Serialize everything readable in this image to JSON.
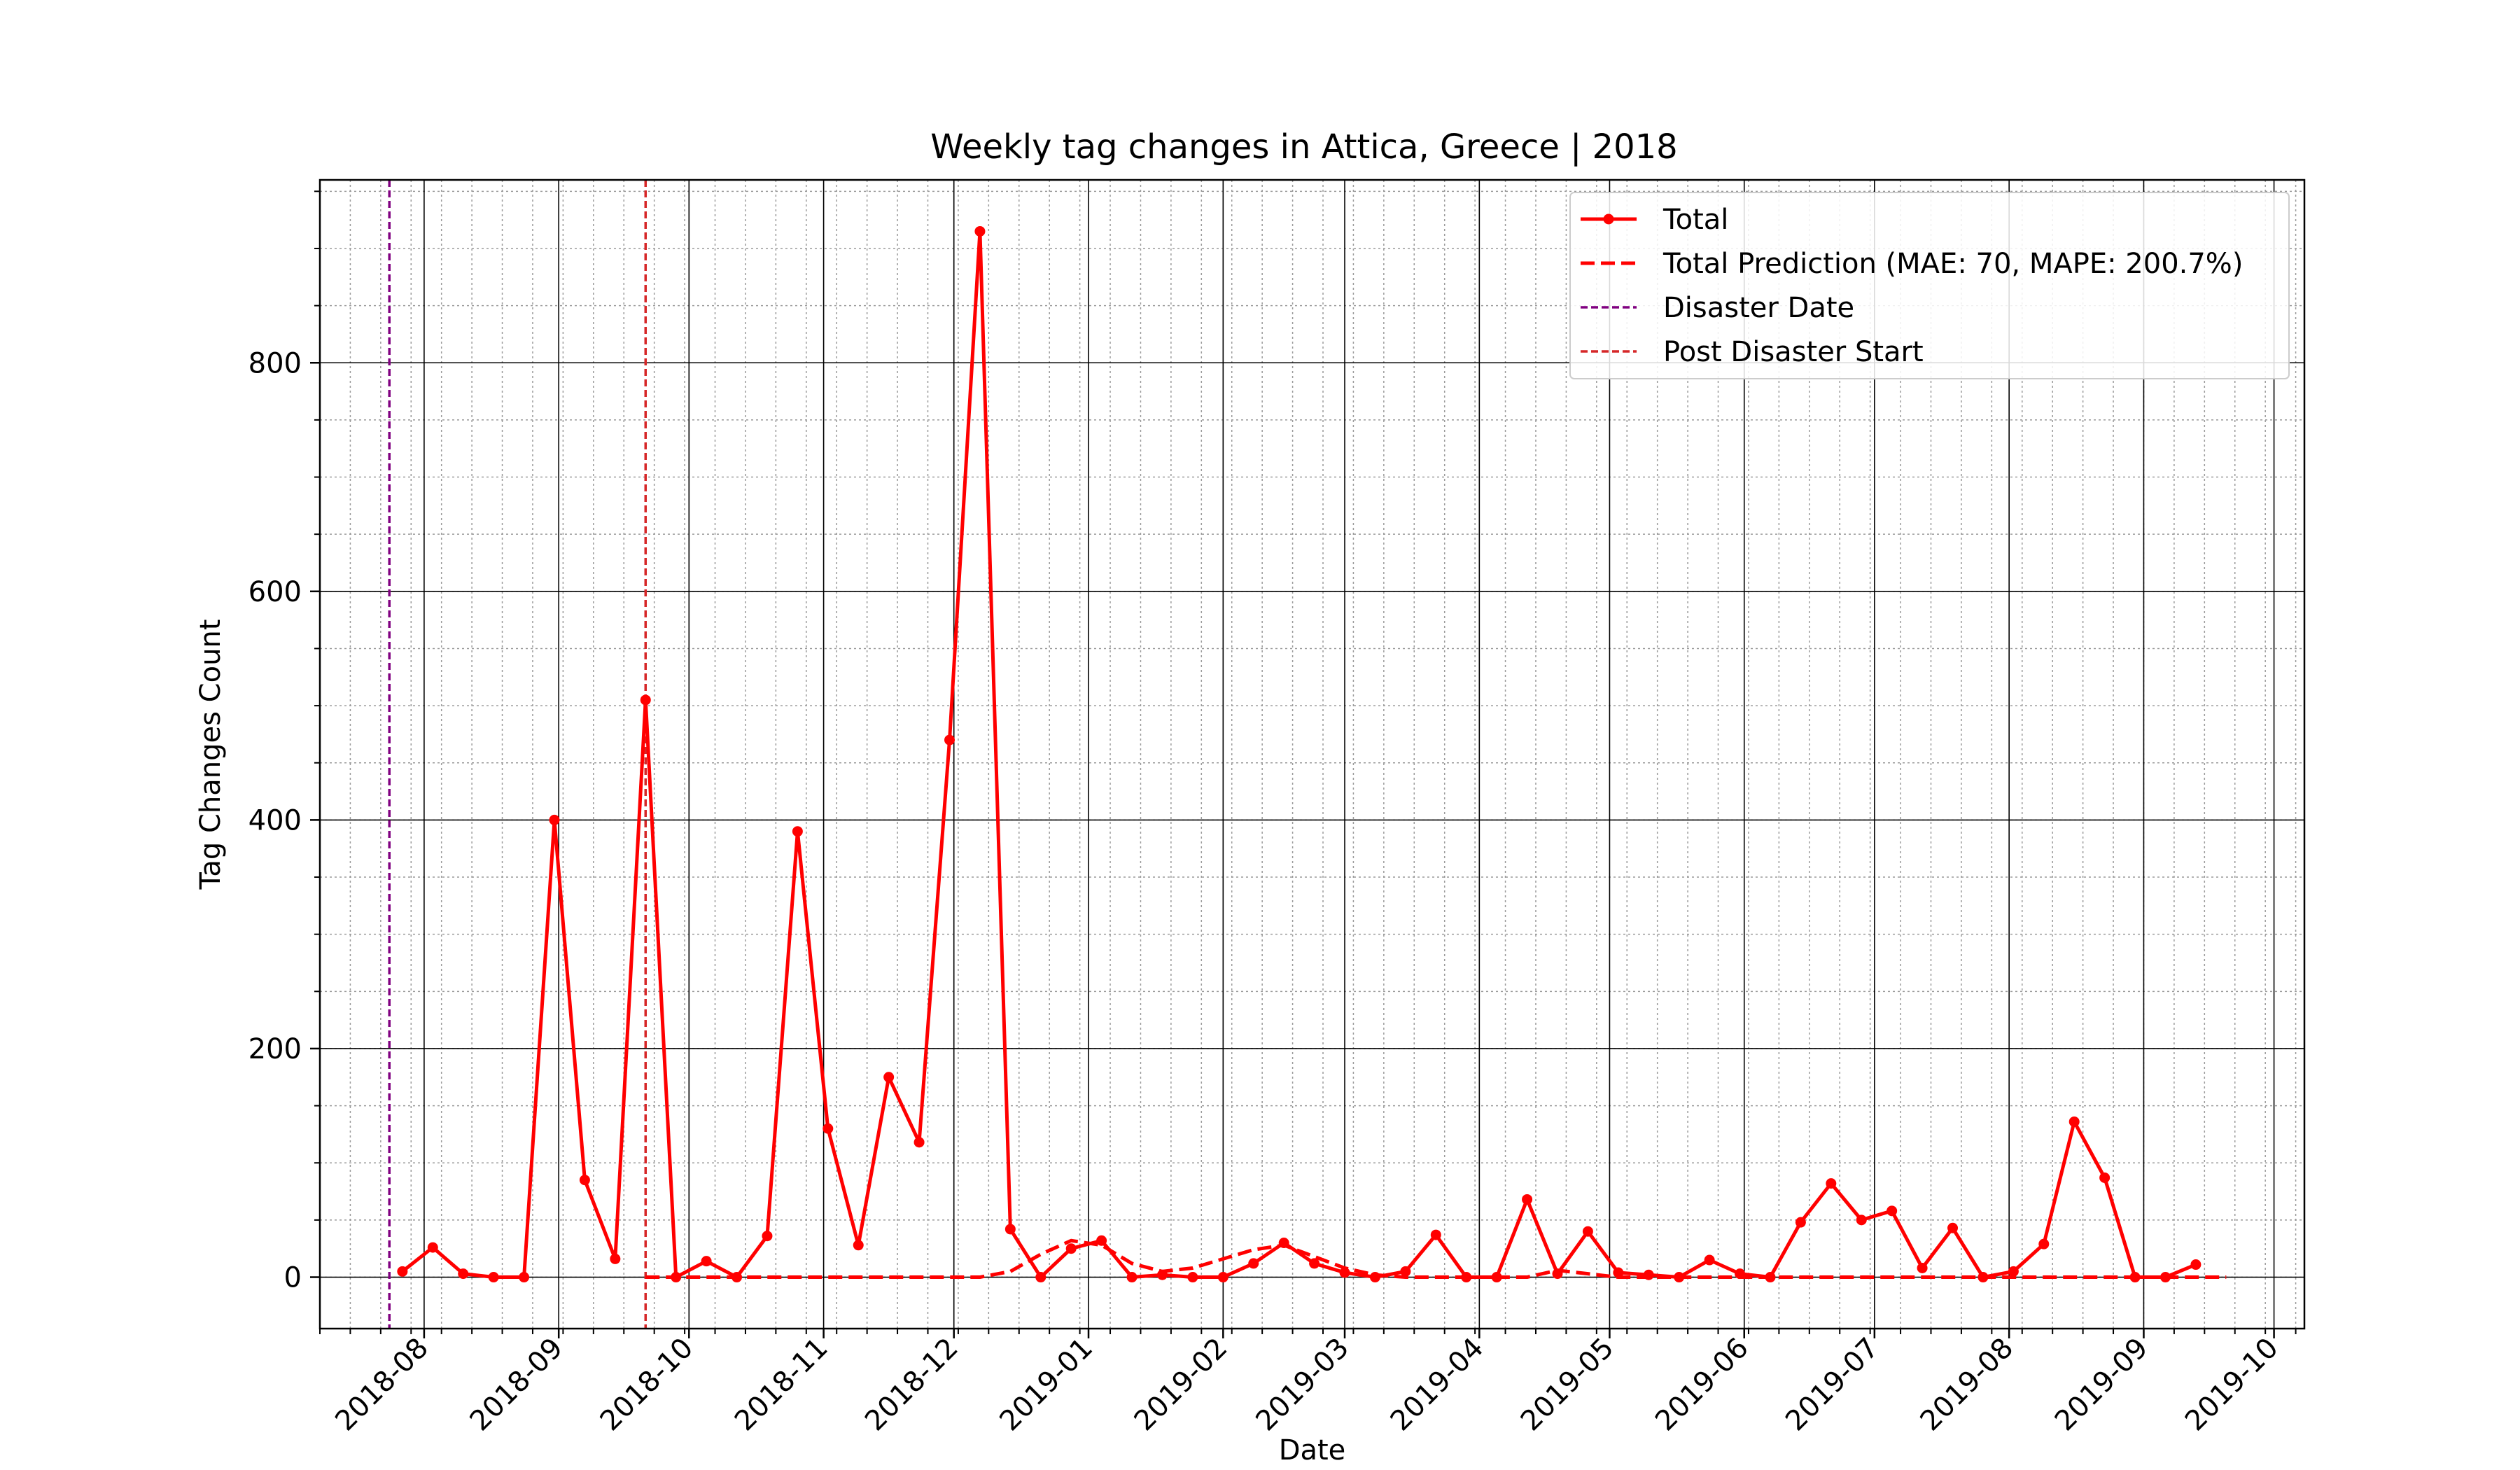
{
  "chart_data": {
    "type": "line",
    "title": "Weekly tag changes in Attica, Greece | 2018",
    "xlabel": "Date",
    "ylabel": "Tag Changes Count",
    "xlim": [
      "2018-07-08",
      "2019-10-08"
    ],
    "ylim": [
      -45,
      960
    ],
    "y_ticks": [
      0,
      200,
      400,
      600,
      800
    ],
    "x_ticks": [
      "2018-08-01",
      "2018-09-01",
      "2018-10-01",
      "2018-11-01",
      "2018-12-01",
      "2019-01-01",
      "2019-02-01",
      "2019-03-01",
      "2019-04-01",
      "2019-05-01",
      "2019-06-01",
      "2019-07-01",
      "2019-08-01",
      "2019-09-01",
      "2019-10-01"
    ],
    "x_tick_labels": [
      "2018-08",
      "2018-09",
      "2018-10",
      "2018-11",
      "2018-12",
      "2019-01",
      "2019-02",
      "2019-03",
      "2019-04",
      "2019-05",
      "2019-06",
      "2019-07",
      "2019-08",
      "2019-09",
      "2019-10"
    ],
    "grid": true,
    "legend_position": "top-right",
    "series": [
      {
        "name": "Total",
        "color": "#ff0000",
        "style": "solid-with-markers",
        "x": [
          "2018-07-27",
          "2018-08-03",
          "2018-08-10",
          "2018-08-17",
          "2018-08-24",
          "2018-08-31",
          "2018-09-07",
          "2018-09-14",
          "2018-09-21",
          "2018-09-28",
          "2018-10-05",
          "2018-10-12",
          "2018-10-19",
          "2018-10-26",
          "2018-11-02",
          "2018-11-09",
          "2018-11-16",
          "2018-11-23",
          "2018-11-30",
          "2018-12-07",
          "2018-12-14",
          "2018-12-21",
          "2018-12-28",
          "2019-01-04",
          "2019-01-11",
          "2019-01-18",
          "2019-01-25",
          "2019-02-01",
          "2019-02-08",
          "2019-02-15",
          "2019-02-22",
          "2019-03-01",
          "2019-03-08",
          "2019-03-15",
          "2019-03-22",
          "2019-03-29",
          "2019-04-05",
          "2019-04-12",
          "2019-04-19",
          "2019-04-26",
          "2019-05-03",
          "2019-05-10",
          "2019-05-17",
          "2019-05-24",
          "2019-05-31",
          "2019-06-07",
          "2019-06-14",
          "2019-06-21",
          "2019-06-28",
          "2019-07-05",
          "2019-07-12",
          "2019-07-19",
          "2019-07-26",
          "2019-08-02",
          "2019-08-09",
          "2019-08-16",
          "2019-08-23",
          "2019-08-30",
          "2019-09-06",
          "2019-09-13"
        ],
        "y": [
          5,
          26,
          3,
          0,
          0,
          400,
          85,
          16,
          505,
          0,
          14,
          0,
          36,
          390,
          130,
          28,
          175,
          118,
          470,
          915,
          42,
          0,
          25,
          32,
          0,
          2,
          0,
          0,
          12,
          30,
          12,
          4,
          0,
          5,
          37,
          0,
          0,
          68,
          3,
          40,
          4,
          2,
          0,
          15,
          3,
          0,
          48,
          82,
          50,
          58,
          8,
          43,
          0,
          5,
          29,
          136,
          87,
          0,
          0,
          11
        ]
      },
      {
        "name": "Total Prediction (MAE: 70, MAPE: 200.7%)",
        "color": "#ff0000",
        "style": "dashed",
        "x": [
          "2018-09-21",
          "2018-09-28",
          "2018-10-05",
          "2018-10-12",
          "2018-10-19",
          "2018-10-26",
          "2018-11-02",
          "2018-11-09",
          "2018-11-16",
          "2018-11-23",
          "2018-11-30",
          "2018-12-07",
          "2018-12-14",
          "2018-12-21",
          "2018-12-28",
          "2019-01-04",
          "2019-01-11",
          "2019-01-18",
          "2019-01-25",
          "2019-02-01",
          "2019-02-08",
          "2019-02-15",
          "2019-02-22",
          "2019-03-01",
          "2019-03-08",
          "2019-03-15",
          "2019-03-22",
          "2019-03-29",
          "2019-04-05",
          "2019-04-12",
          "2019-04-19",
          "2019-04-26",
          "2019-05-03",
          "2019-05-10",
          "2019-05-17",
          "2019-05-24",
          "2019-05-31",
          "2019-06-07",
          "2019-06-14",
          "2019-06-21",
          "2019-06-28",
          "2019-07-05",
          "2019-07-12",
          "2019-07-19",
          "2019-07-26",
          "2019-08-02",
          "2019-08-09",
          "2019-08-16",
          "2019-08-23",
          "2019-08-30",
          "2019-09-06",
          "2019-09-13",
          "2019-09-20"
        ],
        "y": [
          0,
          0,
          0,
          0,
          0,
          0,
          0,
          0,
          0,
          0,
          0,
          0,
          5,
          20,
          32,
          28,
          12,
          5,
          8,
          16,
          24,
          28,
          18,
          8,
          2,
          0,
          0,
          0,
          0,
          0,
          6,
          3,
          0,
          0,
          0,
          0,
          0,
          0,
          0,
          0,
          0,
          0,
          0,
          0,
          0,
          0,
          0,
          0,
          0,
          0,
          0,
          0,
          0
        ]
      }
    ],
    "vlines": [
      {
        "name": "Disaster Date",
        "x": "2018-07-24",
        "color": "#800080"
      },
      {
        "name": "Post Disaster Start",
        "x": "2018-09-21",
        "color": "#d62728"
      }
    ]
  }
}
